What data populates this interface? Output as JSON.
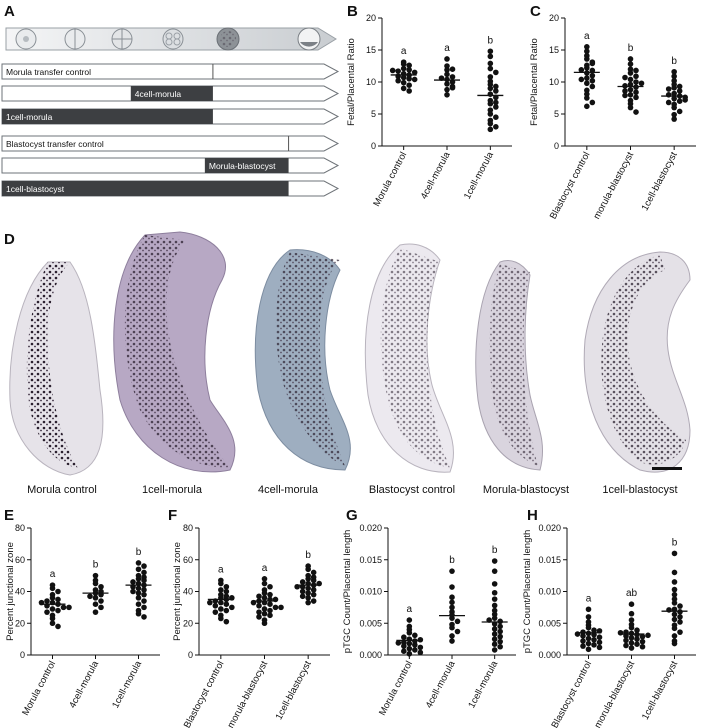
{
  "panels": {
    "A": "A",
    "B": "B",
    "C": "C",
    "D": "D",
    "E": "E",
    "F": "F",
    "G": "G",
    "H": "H"
  },
  "timeline_bars": [
    {
      "label": "Morula transfer control",
      "dark": false,
      "start": 0.0,
      "end": 0.655,
      "marker": 0.655
    },
    {
      "label": "4cell-morula",
      "dark": true,
      "start": 0.4,
      "end": 0.655
    },
    {
      "label": "1cell-morula",
      "dark": true,
      "start": 0.0,
      "end": 0.655
    },
    {
      "label": "Blastocyst transfer control",
      "dark": false,
      "start": 0.0,
      "end": 0.89,
      "marker": 0.89
    },
    {
      "label": "Morula-blastocyst",
      "dark": true,
      "start": 0.63,
      "end": 0.89
    },
    {
      "label": "1cell-blastocyst",
      "dark": true,
      "start": 0.0,
      "end": 0.89
    }
  ],
  "tissue_labels": [
    "Morula control",
    "1cell-morula",
    "4cell-morula",
    "Blastocyst control",
    "Morula-blastocyst",
    "1cell-blastocyst"
  ],
  "chart_data": [
    {
      "id": "B",
      "type": "scatter",
      "ylabel": "Fetal/Placental Ratio",
      "ylim": [
        0,
        20
      ],
      "yticks": [
        0,
        5,
        10,
        15,
        20
      ],
      "categories": [
        "Morula control",
        "4cell-morula",
        "1cell-morula"
      ],
      "letters": [
        "a",
        "a",
        "b"
      ],
      "means": [
        11.1,
        10.3,
        7.9
      ],
      "series": [
        {
          "values": [
            13.1,
            12.8,
            12.6,
            12.1,
            11.9,
            11.7,
            11.5,
            11.3,
            11.1,
            10.9,
            10.7,
            10.5,
            10.2,
            9.9,
            9.5,
            9.0,
            8.6,
            11.8,
            10.4
          ]
        },
        {
          "values": [
            13.6,
            12.5,
            11.9,
            11.2,
            10.8,
            10.4,
            10.0,
            9.7,
            9.3,
            8.8,
            8.0,
            10.6,
            12.0,
            9.1
          ]
        },
        {
          "values": [
            14.8,
            14.0,
            12.9,
            12.1,
            11.5,
            10.8,
            10.1,
            9.6,
            9.0,
            8.6,
            8.1,
            7.6,
            7.1,
            6.6,
            6.1,
            5.6,
            5.0,
            4.5,
            4.0,
            3.5,
            3.0,
            2.6,
            9.3,
            6.8
          ]
        }
      ]
    },
    {
      "id": "C",
      "type": "scatter",
      "ylabel": "Fetal/Placental Ratio",
      "ylim": [
        0,
        20
      ],
      "yticks": [
        0,
        5,
        10,
        15,
        20
      ],
      "categories": [
        "Blastocyst control",
        "morula-blastocyst",
        "1cell-blastocyst"
      ],
      "letters": [
        "a",
        "b",
        "b"
      ],
      "means": [
        11.5,
        9.3,
        7.8
      ],
      "series": [
        {
          "values": [
            15.5,
            14.8,
            14.1,
            13.6,
            13.1,
            12.6,
            12.2,
            11.8,
            11.4,
            11.0,
            10.6,
            10.2,
            9.8,
            9.3,
            8.7,
            8.1,
            7.5,
            6.8,
            6.2,
            11.9,
            12.9,
            10.4
          ]
        },
        {
          "values": [
            13.6,
            12.8,
            12.0,
            11.4,
            10.9,
            10.4,
            10.0,
            9.6,
            9.2,
            8.8,
            8.4,
            8.0,
            7.6,
            7.1,
            6.6,
            6.0,
            5.3,
            9.4,
            9.8,
            10.7,
            8.6,
            7.9,
            11.8
          ]
        },
        {
          "values": [
            11.6,
            10.9,
            10.2,
            9.6,
            9.1,
            8.6,
            8.2,
            7.8,
            7.4,
            7.0,
            6.5,
            6.0,
            5.4,
            4.9,
            4.2,
            8.0,
            7.6,
            9.3,
            6.8,
            8.9,
            7.2
          ]
        }
      ]
    },
    {
      "id": "E",
      "type": "scatter",
      "ylabel": "Percent  junctional zone",
      "ylim": [
        0,
        80
      ],
      "yticks": [
        0,
        20,
        40,
        60,
        80
      ],
      "categories": [
        "Morula control",
        "4cell-morula",
        "1cell-morula"
      ],
      "letters": [
        "a",
        "b",
        "b"
      ],
      "means": [
        32,
        39,
        44
      ],
      "series": [
        {
          "values": [
            44,
            42,
            40,
            38,
            36,
            35,
            34,
            33,
            32,
            31,
            30,
            29,
            28,
            27,
            25,
            23,
            20,
            18,
            33,
            30
          ]
        },
        {
          "values": [
            50,
            47,
            45,
            43,
            41,
            40,
            39,
            38,
            37,
            36,
            34,
            32,
            30,
            27
          ]
        },
        {
          "values": [
            58,
            56,
            54,
            52,
            50,
            49,
            48,
            47,
            46,
            45,
            44,
            43,
            42,
            41,
            40,
            39,
            38,
            36,
            34,
            32,
            30,
            28,
            26,
            24
          ]
        }
      ]
    },
    {
      "id": "F",
      "type": "scatter",
      "ylabel": "Percent  junctional zone",
      "ylim": [
        0,
        80
      ],
      "yticks": [
        0,
        20,
        40,
        60,
        80
      ],
      "categories": [
        "Blastocyst control",
        "morula-blastocyst",
        "1cell-blastocyst"
      ],
      "letters": [
        "a",
        "a",
        "b"
      ],
      "means": [
        35,
        34,
        44
      ],
      "series": [
        {
          "values": [
            47,
            45,
            43,
            41,
            40,
            38,
            37,
            36,
            35,
            34,
            33,
            32,
            31,
            30,
            29,
            28,
            27,
            25,
            23,
            21,
            36,
            33
          ]
        },
        {
          "values": [
            48,
            45,
            43,
            41,
            39,
            38,
            37,
            36,
            35,
            34,
            33,
            32,
            31,
            30,
            29,
            28,
            27,
            26,
            25,
            24,
            22,
            20,
            35,
            33,
            30
          ]
        },
        {
          "values": [
            56,
            54,
            52,
            50,
            49,
            48,
            47,
            46,
            45,
            44,
            43,
            42,
            41,
            40,
            39,
            38,
            37,
            36,
            34,
            33,
            45,
            43
          ]
        }
      ]
    },
    {
      "id": "G",
      "type": "scatter",
      "ylabel": "pTGC Count/Placental length",
      "ylim": [
        0,
        0.02
      ],
      "yticks": [
        0.0,
        0.005,
        0.01,
        0.015,
        0.02
      ],
      "ytick_labels": [
        "0.000",
        "0.005",
        "0.010",
        "0.015",
        "0.020"
      ],
      "categories": [
        "Morula control",
        "4cell-morula",
        "1cell-morula"
      ],
      "letters": [
        "a",
        "b",
        "b"
      ],
      "means": [
        0.0023,
        0.0062,
        0.0052
      ],
      "series": [
        {
          "values": [
            0.0055,
            0.0045,
            0.004,
            0.0035,
            0.0031,
            0.0028,
            0.0025,
            0.0022,
            0.002,
            0.0018,
            0.0016,
            0.0014,
            0.0012,
            0.001,
            0.0008,
            0.0006,
            0.0004,
            0.0002,
            0.0019,
            0.0024
          ]
        },
        {
          "values": [
            0.0132,
            0.0107,
            0.0091,
            0.0083,
            0.0075,
            0.0068,
            0.0063,
            0.0058,
            0.0053,
            0.0048,
            0.0043,
            0.0037,
            0.003,
            0.0022
          ]
        },
        {
          "values": [
            0.0148,
            0.0132,
            0.0112,
            0.0098,
            0.0088,
            0.0078,
            0.007,
            0.0064,
            0.0058,
            0.0053,
            0.0049,
            0.0045,
            0.0041,
            0.0037,
            0.0033,
            0.0029,
            0.0025,
            0.0021,
            0.0017,
            0.0013,
            0.0008,
            0.0055
          ]
        }
      ]
    },
    {
      "id": "H",
      "type": "scatter",
      "ylabel": "pTGC Count/Placental length",
      "ylim": [
        0,
        0.02
      ],
      "yticks": [
        0.0,
        0.005,
        0.01,
        0.015,
        0.02
      ],
      "ytick_labels": [
        "0.000",
        "0.005",
        "0.010",
        "0.015",
        "0.020"
      ],
      "categories": [
        "Blastocyst control",
        "morula-blastocyst",
        "1cell-blastocyst"
      ],
      "letters": [
        "a",
        "ab",
        "b"
      ],
      "means": [
        0.0035,
        0.0033,
        0.0069
      ],
      "series": [
        {
          "values": [
            0.0072,
            0.006,
            0.0052,
            0.0047,
            0.0043,
            0.0039,
            0.0036,
            0.0034,
            0.0032,
            0.003,
            0.0028,
            0.0026,
            0.0024,
            0.0022,
            0.002,
            0.0018,
            0.0016,
            0.0014,
            0.0012,
            0.0009,
            0.0033,
            0.0038
          ]
        },
        {
          "values": [
            0.008,
            0.0065,
            0.0055,
            0.0048,
            0.0043,
            0.0039,
            0.0036,
            0.0034,
            0.0032,
            0.003,
            0.0029,
            0.0027,
            0.0025,
            0.0023,
            0.0021,
            0.0019,
            0.0017,
            0.0015,
            0.0013,
            0.0011,
            0.0035,
            0.0031
          ]
        },
        {
          "values": [
            0.016,
            0.013,
            0.0115,
            0.0103,
            0.0095,
            0.0088,
            0.0082,
            0.0077,
            0.0072,
            0.0068,
            0.0064,
            0.006,
            0.0056,
            0.0052,
            0.0047,
            0.0042,
            0.0036,
            0.003,
            0.0022,
            0.0018,
            0.0071
          ]
        }
      ]
    }
  ]
}
